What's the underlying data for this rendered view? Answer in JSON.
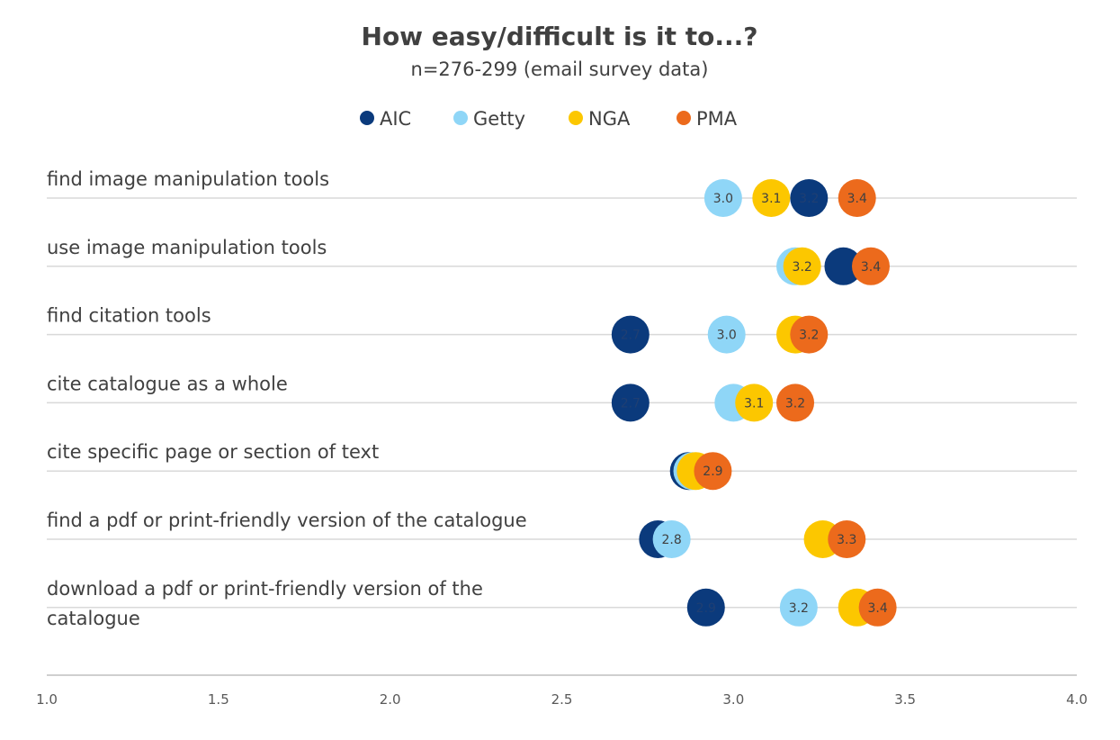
{
  "chart_data": {
    "type": "scatter",
    "title": "How easy/difficult is it to...?",
    "subtitle": "n=276-299 (email survey data)",
    "xlim": [
      1.0,
      4.0
    ],
    "x_ticks": [
      "1.0",
      "1.5",
      "2.0",
      "2.5",
      "3.0",
      "3.5",
      "4.0"
    ],
    "legend_position": "top",
    "categories": [
      [
        "find image manipulation tools"
      ],
      [
        "use image manipulation tools"
      ],
      [
        "find citation tools"
      ],
      [
        "cite catalogue as a whole"
      ],
      [
        "cite specific page or section of text"
      ],
      [
        "find a pdf or print-friendly version of the catalogue"
      ],
      [
        "download a pdf or print-friendly version of the",
        "catalogue"
      ]
    ],
    "series": [
      {
        "name": "AIC",
        "color": "#0b3a7c",
        "label_color": "#1f3f73",
        "values": [
          3.22,
          3.32,
          2.7,
          2.7,
          2.87,
          2.78,
          2.92
        ],
        "labels": [
          "3.2",
          "",
          "2.7",
          "2.7",
          "",
          "",
          "2.9"
        ]
      },
      {
        "name": "Getty",
        "color": "#8fd6f7",
        "label_color": "#404040",
        "values": [
          2.97,
          3.18,
          2.98,
          3.0,
          2.88,
          2.82,
          3.19
        ],
        "labels": [
          "3.0",
          "",
          "3.0",
          "",
          "",
          "2.8",
          "3.2"
        ]
      },
      {
        "name": "NGA",
        "color": "#fcc700",
        "label_color": "#404040",
        "values": [
          3.11,
          3.2,
          3.18,
          3.06,
          2.89,
          3.26,
          3.36
        ],
        "labels": [
          "3.1",
          "3.2",
          "",
          "3.1",
          "",
          "",
          ""
        ]
      },
      {
        "name": "PMA",
        "color": "#ec6a1c",
        "label_color": "#404040",
        "values": [
          3.36,
          3.4,
          3.22,
          3.18,
          2.94,
          3.33,
          3.42
        ],
        "labels": [
          "3.4",
          "3.4",
          "3.2",
          "3.2",
          "2.9",
          "3.3",
          "3.4"
        ]
      }
    ]
  }
}
